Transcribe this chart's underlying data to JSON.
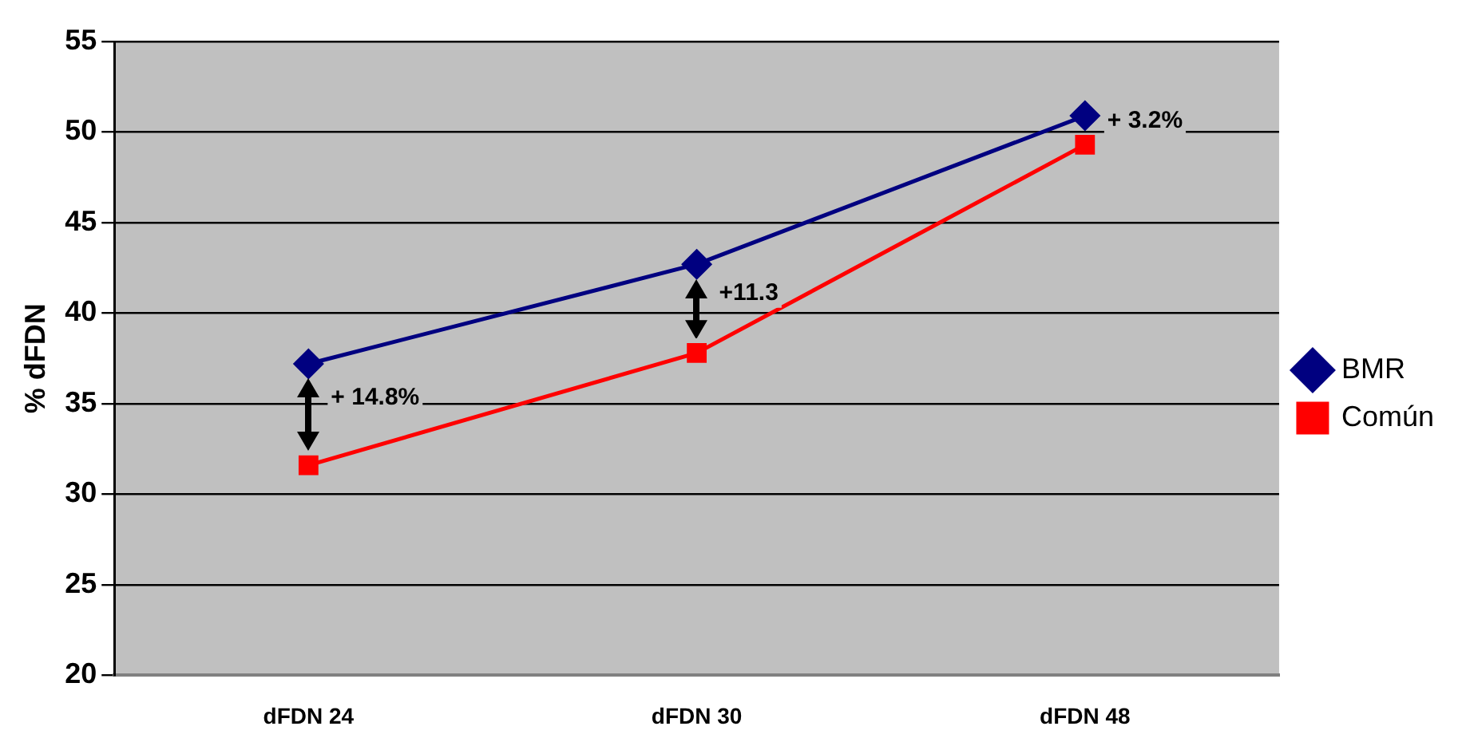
{
  "chart_data": {
    "type": "line",
    "ylabel": "% dFDN",
    "categories": [
      "dFDN 24",
      "dFDN 30",
      "dFDN 48"
    ],
    "series": [
      {
        "name": "BMR",
        "color": "#000080",
        "values": [
          37.2,
          42.7,
          50.9
        ],
        "marker": "diamond"
      },
      {
        "name": "Común",
        "color": "#ff0000",
        "values": [
          31.6,
          37.8,
          49.3
        ],
        "marker": "square"
      }
    ],
    "ylim": [
      20,
      55
    ],
    "yticks": [
      20,
      25,
      30,
      35,
      40,
      45,
      50,
      55
    ],
    "grid": "y",
    "legend": "right",
    "annotations": [
      "+ 14.8%",
      "+11.3",
      "+ 3.2%"
    ]
  }
}
